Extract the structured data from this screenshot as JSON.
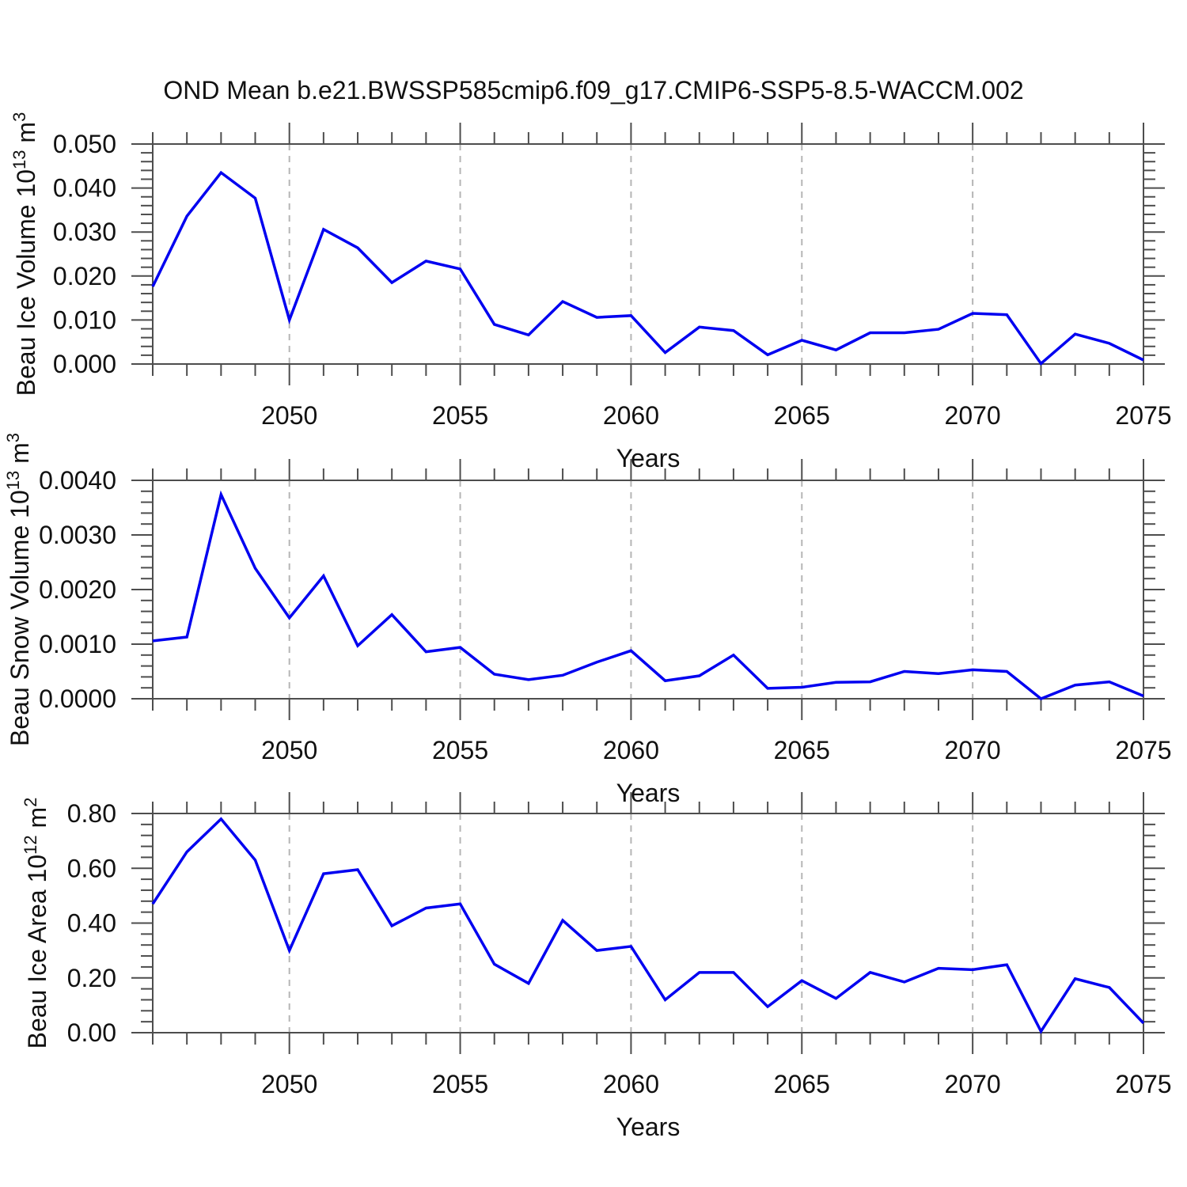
{
  "figure": {
    "title": "OND Mean b.e21.BWSSP585cmip6.f09_g17.CMIP6-SSP5-8.5-WACCM.002"
  },
  "colors": {
    "line": "#0000f0",
    "grid": "#b5b5b5",
    "axis": "#4d4d4d",
    "text": "#111111"
  },
  "chart_data": [
    {
      "type": "line",
      "name": "beau-ice-volume",
      "ylabel": "Beau Ice Volume 10^13 m^3",
      "ylabel_parts": [
        {
          "text": "Beau Ice Volume 10",
          "sup": false
        },
        {
          "text": "13",
          "sup": true
        },
        {
          "text": " m",
          "sup": false
        },
        {
          "text": "3",
          "sup": true
        }
      ],
      "xlabel": "Years",
      "xlim": [
        2046,
        2075
      ],
      "ylim": [
        0,
        0.05
      ],
      "ytick_step": 0.01,
      "y_decimals": 3,
      "xticks_labeled": [
        2050,
        2055,
        2060,
        2065,
        2070,
        2075
      ],
      "grid_x": [
        2050,
        2055,
        2060,
        2065,
        2070
      ],
      "x": [
        2046,
        2047,
        2048,
        2049,
        2050,
        2051,
        2052,
        2053,
        2054,
        2055,
        2056,
        2057,
        2058,
        2059,
        2060,
        2061,
        2062,
        2063,
        2064,
        2065,
        2066,
        2067,
        2068,
        2069,
        2070,
        2071,
        2072,
        2073,
        2074,
        2075
      ],
      "y": [
        0.0176,
        0.0336,
        0.0435,
        0.0377,
        0.01,
        0.0306,
        0.0264,
        0.0185,
        0.0234,
        0.0216,
        0.009,
        0.0066,
        0.0142,
        0.0106,
        0.011,
        0.0026,
        0.0084,
        0.0076,
        0.0021,
        0.0054,
        0.0032,
        0.0071,
        0.0071,
        0.0079,
        0.0115,
        0.0112,
        0.0001,
        0.0068,
        0.0047,
        0.0009
      ]
    },
    {
      "type": "line",
      "name": "beau-snow-volume",
      "ylabel": "Beau Snow Volume 10^13 m^3",
      "ylabel_parts": [
        {
          "text": "Beau Snow Volume 10",
          "sup": false
        },
        {
          "text": "13",
          "sup": true
        },
        {
          "text": " m",
          "sup": false
        },
        {
          "text": "3",
          "sup": true
        }
      ],
      "xlabel": "Years",
      "xlim": [
        2046,
        2075
      ],
      "ylim": [
        0,
        0.004
      ],
      "ytick_step": 0.001,
      "y_decimals": 4,
      "xticks_labeled": [
        2050,
        2055,
        2060,
        2065,
        2070,
        2075
      ],
      "grid_x": [
        2050,
        2055,
        2060,
        2065,
        2070
      ],
      "x": [
        2046,
        2047,
        2048,
        2049,
        2050,
        2051,
        2052,
        2053,
        2054,
        2055,
        2056,
        2057,
        2058,
        2059,
        2060,
        2061,
        2062,
        2063,
        2064,
        2065,
        2066,
        2067,
        2068,
        2069,
        2070,
        2071,
        2072,
        2073,
        2074,
        2075
      ],
      "y": [
        0.00106,
        0.00113,
        0.00374,
        0.00239,
        0.00148,
        0.00225,
        0.00097,
        0.00154,
        0.00086,
        0.00094,
        0.00045,
        0.00035,
        0.00043,
        0.00067,
        0.00088,
        0.00033,
        0.00042,
        0.0008,
        0.00019,
        0.00021,
        0.0003,
        0.00031,
        0.0005,
        0.00046,
        0.00053,
        0.0005,
        0.0,
        0.00025,
        0.00031,
        5e-05
      ]
    },
    {
      "type": "line",
      "name": "beau-ice-area",
      "ylabel": "Beau Ice Area 10^12 m^2",
      "ylabel_parts": [
        {
          "text": "Beau Ice Area 10",
          "sup": false
        },
        {
          "text": "12",
          "sup": true
        },
        {
          "text": " m",
          "sup": false
        },
        {
          "text": "2",
          "sup": true
        }
      ],
      "xlabel": "Years",
      "xlim": [
        2046,
        2075
      ],
      "ylim": [
        0,
        0.8
      ],
      "ytick_step": 0.2,
      "y_decimals": 2,
      "xticks_labeled": [
        2050,
        2055,
        2060,
        2065,
        2070,
        2075
      ],
      "grid_x": [
        2050,
        2055,
        2060,
        2065,
        2070
      ],
      "x": [
        2046,
        2047,
        2048,
        2049,
        2050,
        2051,
        2052,
        2053,
        2054,
        2055,
        2056,
        2057,
        2058,
        2059,
        2060,
        2061,
        2062,
        2063,
        2064,
        2065,
        2066,
        2067,
        2068,
        2069,
        2070,
        2071,
        2072,
        2073,
        2074,
        2075
      ],
      "y": [
        0.47,
        0.66,
        0.78,
        0.63,
        0.3,
        0.58,
        0.595,
        0.39,
        0.455,
        0.47,
        0.25,
        0.18,
        0.41,
        0.3,
        0.315,
        0.12,
        0.22,
        0.22,
        0.095,
        0.19,
        0.125,
        0.22,
        0.185,
        0.235,
        0.23,
        0.248,
        0.005,
        0.197,
        0.165,
        0.035
      ]
    }
  ]
}
